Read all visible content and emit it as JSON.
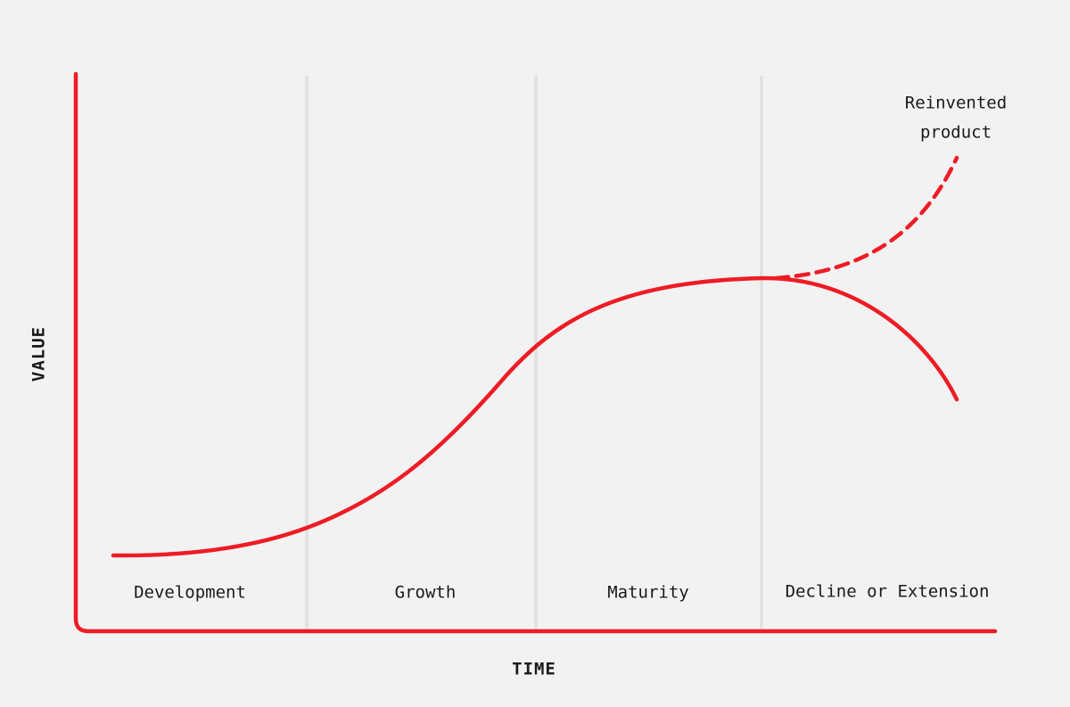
{
  "axes": {
    "y_label": "VALUE",
    "x_label": "TIME"
  },
  "stages": [
    "Development",
    "Growth",
    "Maturity",
    "Decline or Extension"
  ],
  "annotation": {
    "lines": [
      "Reinvented",
      "product"
    ]
  }
}
